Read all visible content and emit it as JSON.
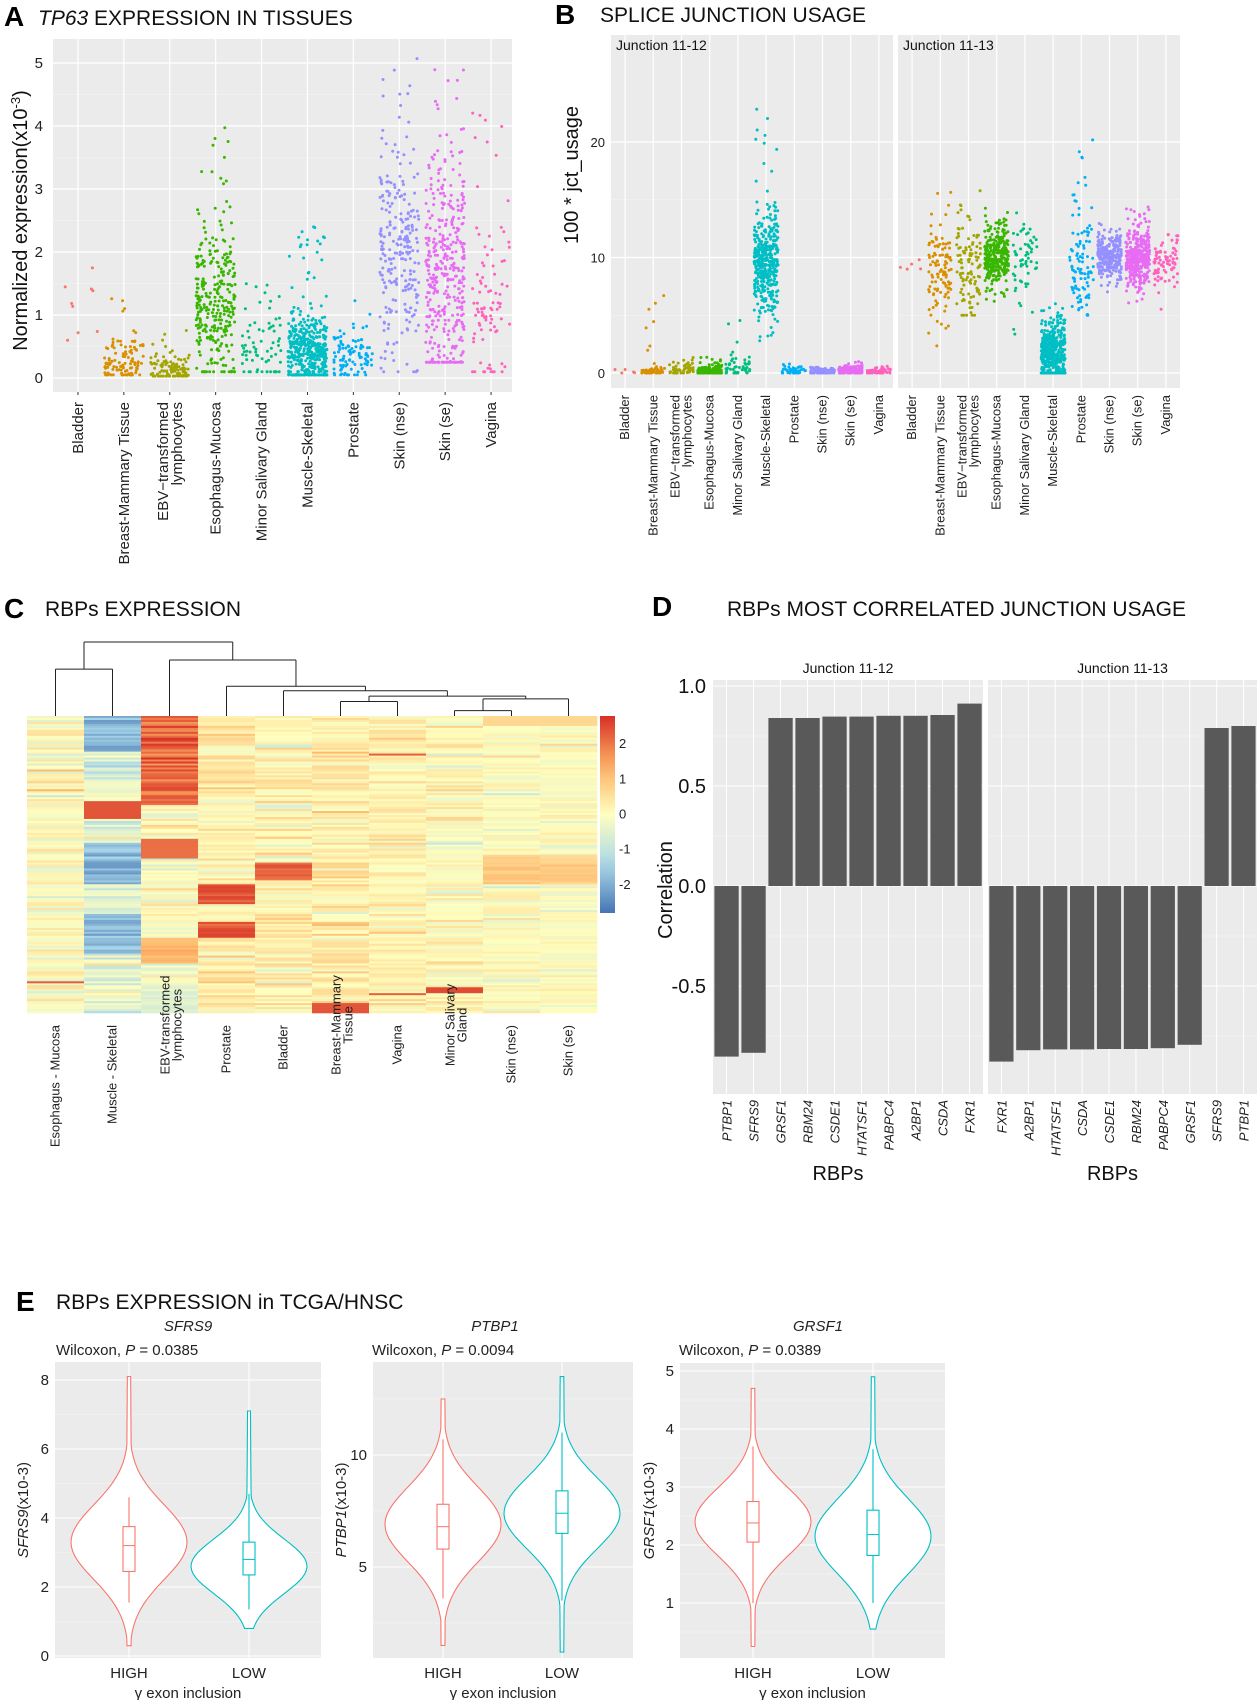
{
  "panels": {
    "A": {
      "letter": "A",
      "title_italic": "TP63",
      "title_rest": " EXPRESSION IN TISSUES"
    },
    "B": {
      "letter": "B",
      "title": "SPLICE JUNCTION USAGE"
    },
    "C": {
      "letter": "C",
      "title": "RBPs EXPRESSION"
    },
    "D": {
      "letter": "D",
      "title": "RBPs MOST CORRELATED JUNCTION USAGE"
    },
    "E": {
      "letter": "E",
      "title": "RBPs EXPRESSION in TCGA/HNSC"
    }
  },
  "chart_data": [
    {
      "id": "A",
      "type": "scatter",
      "title": "TP63 EXPRESSION IN TISSUES",
      "xlabel": "",
      "ylabel": "Normalized expression(x10^-3)",
      "ylabel_parts": {
        "main": "Normalized expression(x10",
        "sup": "-3",
        "close": ")"
      },
      "ylim": [
        -0.2,
        5.3
      ],
      "yticks": [
        0,
        1,
        2,
        3,
        4,
        5
      ],
      "grid": true,
      "categories": [
        "Bladder",
        "Breast-Mammary Tissue",
        "EBV−transformed lymphocytes",
        "Esophagus-Mucosa",
        "Minor Salivary Gland",
        "Muscle-Skeletal",
        "Prostate",
        "Skin (nse)",
        "Skin (se)",
        "Vagina"
      ],
      "category_label_lines": [
        [
          "Bladder"
        ],
        [
          "Breast-Mammary Tissue"
        ],
        [
          "EBV−transformed",
          "lymphocytes"
        ],
        [
          "Esophagus-Mucosa"
        ],
        [
          "Minor Salivary Gland"
        ],
        [
          "Muscle-Skeletal"
        ],
        [
          "Prostate"
        ],
        [
          "Skin (nse)"
        ],
        [
          "Skin (se)"
        ],
        [
          "Vagina"
        ]
      ],
      "colors": [
        "#F8766D",
        "#D89000",
        "#A3A500",
        "#39B600",
        "#00BF7D",
        "#00BFC4",
        "#00B0F6",
        "#9590FF",
        "#E76BF3",
        "#FF62BC"
      ],
      "distribution_summary": [
        {
          "n": 9,
          "median": 1.2,
          "q1": 0.9,
          "q3": 1.5,
          "min": 0.6,
          "max": 1.85
        },
        {
          "n": 110,
          "median": 0.25,
          "q1": 0.15,
          "q3": 0.45,
          "min": 0.05,
          "max": 1.55
        },
        {
          "n": 110,
          "median": 0.14,
          "q1": 0.08,
          "q3": 0.22,
          "min": 0.03,
          "max": 0.78
        },
        {
          "n": 300,
          "median": 1.2,
          "q1": 0.8,
          "q3": 1.65,
          "min": 0.1,
          "max": 4.1
        },
        {
          "n": 70,
          "median": 0.4,
          "q1": 0.22,
          "q3": 0.8,
          "min": 0.1,
          "max": 2.4
        },
        {
          "n": 420,
          "median": 0.4,
          "q1": 0.22,
          "q3": 0.65,
          "min": 0.05,
          "max": 2.55
        },
        {
          "n": 100,
          "median": 0.3,
          "q1": 0.18,
          "q3": 0.45,
          "min": 0.05,
          "max": 1.65
        },
        {
          "n": 250,
          "median": 2.1,
          "q1": 1.5,
          "q3": 2.7,
          "min": 0.1,
          "max": 5.1
        },
        {
          "n": 380,
          "median": 1.7,
          "q1": 1.1,
          "q3": 2.4,
          "min": 0.25,
          "max": 5.1
        },
        {
          "n": 90,
          "median": 1.3,
          "q1": 0.8,
          "q3": 2.0,
          "min": 0.1,
          "max": 4.35
        }
      ]
    },
    {
      "id": "B",
      "type": "scatter",
      "title": "SPLICE JUNCTION USAGE",
      "ylabel": "100 * jct_usage",
      "ylim": [
        -1.5,
        26.5
      ],
      "yticks": [
        0,
        10,
        20
      ],
      "grid": true,
      "categories": [
        "Bladder",
        "Breast-Mammary Tissue",
        "EBV−transformed lymphocytes",
        "Esophagus-Mucosa",
        "Minor Salivary Gland",
        "Muscle-Skeletal",
        "Prostate",
        "Skin (nse)",
        "Skin (se)",
        "Vagina"
      ],
      "category_label_lines": [
        [
          "Bladder"
        ],
        [
          "Breast-Mammary Tissue"
        ],
        [
          "EBV−transformed",
          "lymphocytes"
        ],
        [
          "Esophagus-Mucosa"
        ],
        [
          "Minor Salivary Gland"
        ],
        [
          "Muscle-Skeletal"
        ],
        [
          "Prostate"
        ],
        [
          "Skin (nse)"
        ],
        [
          "Skin (se)"
        ],
        [
          "Vagina"
        ]
      ],
      "colors": [
        "#F8766D",
        "#D89000",
        "#A3A500",
        "#39B600",
        "#00BF7D",
        "#00BFC4",
        "#00B0F6",
        "#9590FF",
        "#E76BF3",
        "#FF62BC"
      ],
      "facets": [
        {
          "label": "Junction 11-12",
          "distribution_summary": [
            {
              "n": 5,
              "median": 0.1,
              "q1": 0.0,
              "q3": 0.2,
              "min": 0,
              "max": 0.3
            },
            {
              "n": 60,
              "median": 0.2,
              "q1": 0.05,
              "q3": 0.4,
              "min": 0,
              "max": 6.8
            },
            {
              "n": 60,
              "median": 0.3,
              "q1": 0.1,
              "q3": 0.6,
              "min": 0,
              "max": 1.6
            },
            {
              "n": 150,
              "median": 0.2,
              "q1": 0.1,
              "q3": 0.4,
              "min": 0,
              "max": 1.5
            },
            {
              "n": 50,
              "median": 0.3,
              "q1": 0.1,
              "q3": 0.8,
              "min": 0,
              "max": 8.7
            },
            {
              "n": 400,
              "median": 9.5,
              "q1": 8.0,
              "q3": 11.0,
              "min": 2.8,
              "max": 24.0
            },
            {
              "n": 40,
              "median": 0.2,
              "q1": 0.05,
              "q3": 0.4,
              "min": 0,
              "max": 0.8
            },
            {
              "n": 100,
              "median": 0.15,
              "q1": 0.05,
              "q3": 0.3,
              "min": 0,
              "max": 0.5
            },
            {
              "n": 120,
              "median": 0.2,
              "q1": 0.05,
              "q3": 0.4,
              "min": 0,
              "max": 1.0
            },
            {
              "n": 50,
              "median": 0.15,
              "q1": 0.05,
              "q3": 0.3,
              "min": 0,
              "max": 0.8
            }
          ]
        },
        {
          "label": "Junction 11-13",
          "distribution_summary": [
            {
              "n": 5,
              "median": 9.3,
              "q1": 9.1,
              "q3": 9.5,
              "min": 9.0,
              "max": 10.8
            },
            {
              "n": 110,
              "median": 9.0,
              "q1": 7.5,
              "q3": 10.8,
              "min": 1.4,
              "max": 16.5
            },
            {
              "n": 110,
              "median": 9.5,
              "q1": 8.0,
              "q3": 11.0,
              "min": 5.0,
              "max": 18.0
            },
            {
              "n": 300,
              "median": 10.0,
              "q1": 9.2,
              "q3": 10.8,
              "min": 6.0,
              "max": 14.8
            },
            {
              "n": 60,
              "median": 9.5,
              "q1": 8.0,
              "q3": 11.0,
              "min": 1.8,
              "max": 15.5
            },
            {
              "n": 420,
              "median": 1.8,
              "q1": 0.8,
              "q3": 2.8,
              "min": 0,
              "max": 6.0
            },
            {
              "n": 100,
              "median": 9.3,
              "q1": 7.5,
              "q3": 11.0,
              "min": 3.2,
              "max": 20.2
            },
            {
              "n": 250,
              "median": 10.0,
              "q1": 9.3,
              "q3": 10.7,
              "min": 7.0,
              "max": 14.0
            },
            {
              "n": 380,
              "median": 10.0,
              "q1": 9.2,
              "q3": 10.8,
              "min": 6.0,
              "max": 14.5
            },
            {
              "n": 80,
              "median": 9.7,
              "q1": 9.0,
              "q3": 10.4,
              "min": 5.5,
              "max": 13.8
            }
          ]
        }
      ]
    },
    {
      "id": "C",
      "type": "heatmap",
      "title": "RBPs EXPRESSION",
      "columns": [
        "Esophagus - Mucosa",
        "Muscle - Skeletal",
        "EBV-transformed lymphocytes",
        "Prostate",
        "Bladder",
        "Breast-Mammary Tissue",
        "Vagina",
        "Minor Salivary Gland",
        "Skin (nse)",
        "Skin (se)"
      ],
      "column_label_lines": [
        [
          "Esophagus - Mucosa"
        ],
        [
          "Muscle - Skeletal"
        ],
        [
          "EBV-transformed",
          "lymphocytes"
        ],
        [
          "Prostate"
        ],
        [
          "Bladder"
        ],
        [
          "Breast-Mammary",
          "Tissue"
        ],
        [
          "Vagina"
        ],
        [
          "Minor Salivary",
          "Gland"
        ],
        [
          "Skin (nse)"
        ],
        [
          "Skin (se)"
        ]
      ],
      "colorbar": {
        "ticks": [
          2,
          1,
          0,
          -1,
          -2
        ],
        "range": [
          -2.8,
          2.8
        ],
        "low_color": "#4575B4",
        "mid_color": "#FFFFBF",
        "high_color": "#D73027"
      },
      "n_rows": 150,
      "dendrogram": {
        "merges": [
          {
            "a": [
              7
            ],
            "b": [
              8
            ],
            "height": 0.06
          },
          {
            "a": [
              5
            ],
            "b": [
              6
            ],
            "height": 0.16
          },
          {
            "a": [
              9
            ],
            "b": [
              7,
              8
            ],
            "height": 0.19
          },
          {
            "a": [
              5,
              6
            ],
            "b": [
              9,
              7,
              8
            ],
            "height": 0.22
          },
          {
            "a": [
              4
            ],
            "b": [
              5,
              6,
              9,
              7,
              8
            ],
            "height": 0.28
          },
          {
            "a": [
              3
            ],
            "b": [
              4,
              5,
              6,
              9,
              7,
              8
            ],
            "height": 0.33
          },
          {
            "a": [
              0
            ],
            "b": [
              1
            ],
            "height": 0.52
          },
          {
            "a": [
              2
            ],
            "b": [
              3,
              4,
              5,
              6,
              9,
              7,
              8
            ],
            "height": 0.62
          },
          {
            "a": [
              0,
              1
            ],
            "b": [
              2,
              3,
              4,
              5,
              6,
              9,
              7,
              8
            ],
            "height": 0.82
          }
        ],
        "note": "leaf indices refer to columns order"
      },
      "column_blocks": [
        {
          "col": 1,
          "pattern": "blue rows 0-18, 64-85, 100-120 strongly negative; red block rows 43-52"
        },
        {
          "col": 2,
          "pattern": "red rows 0-45; red block rows 62-72"
        },
        {
          "col": 3,
          "pattern": "red block rows 85-95, 104-112"
        },
        {
          "col": 4,
          "pattern": "red block rows 74-83"
        }
      ]
    },
    {
      "id": "D",
      "type": "bar",
      "title": "RBPs MOST CORRELATED JUNCTION USAGE",
      "xlabel": "RBPs",
      "ylabel": "Correlation",
      "ylim": [
        -0.95,
        1.0
      ],
      "yticks": [
        1.0,
        0.5,
        0.0,
        -0.5
      ],
      "ytick_labels": [
        "1.0",
        "0.5",
        "0.0",
        "-0.5"
      ],
      "grid": true,
      "bar_color": "#595959",
      "facets": [
        {
          "label": "Junction 11-12",
          "categories": [
            "PTBP1",
            "SFRS9",
            "GRSF1",
            "RBM24",
            "CSDE1",
            "HTATSF1",
            "PABPC4",
            "A2BP1",
            "CSDA",
            "FXR1"
          ],
          "values": [
            -0.853,
            -0.834,
            0.84,
            0.84,
            0.847,
            0.847,
            0.851,
            0.851,
            0.855,
            0.912
          ]
        },
        {
          "label": "Junction 11-13",
          "categories": [
            "FXR1",
            "A2BP1",
            "HTATSF1",
            "CSDA",
            "CSDE1",
            "RBM24",
            "PABPC4",
            "GRSF1",
            "SFRS9",
            "PTBP1"
          ],
          "values": [
            -0.878,
            -0.821,
            -0.817,
            -0.817,
            -0.815,
            -0.815,
            -0.811,
            -0.794,
            0.79,
            0.8
          ]
        }
      ]
    },
    {
      "id": "E",
      "type": "violin",
      "title": "RBPs EXPRESSION in TCGA/HNSC",
      "subplots": [
        {
          "gene": "SFRS9",
          "stat_label_prefix": "Wilcoxon, ",
          "stat_p_symbol": "P",
          "stat_p_value": " = 0.0385",
          "ylabel_gene": "SFRS9",
          "ylabel_suffix": "(x10-3)",
          "ylim": [
            0,
            8.3
          ],
          "yticks": [
            0,
            2,
            4,
            6,
            8
          ],
          "xlabel": "γ exon inclusion",
          "categories": [
            "HIGH",
            "LOW"
          ],
          "groups": [
            {
              "name": "HIGH",
              "color": "#F8766D",
              "min": 0.3,
              "max": 8.1,
              "whisker_low": 1.55,
              "q1": 2.45,
              "median": 3.2,
              "q3": 3.75,
              "whisker_high": 4.6,
              "mode": 3.3
            },
            {
              "name": "LOW",
              "color": "#00BFC4",
              "min": 0.8,
              "max": 7.1,
              "whisker_low": 1.35,
              "q1": 2.35,
              "median": 2.8,
              "q3": 3.3,
              "whisker_high": 4.7,
              "mode": 2.6
            }
          ]
        },
        {
          "gene": "PTBP1",
          "stat_label_prefix": "Wilcoxon, ",
          "stat_p_symbol": "P",
          "stat_p_value": " = 0.0094",
          "ylabel_gene": "PTBP1",
          "ylabel_suffix": "(x10-3)",
          "ylim": [
            0.9,
            14.0
          ],
          "yticks": [
            5,
            10
          ],
          "xlabel": "γ exon inclusion",
          "categories": [
            "HIGH",
            "LOW"
          ],
          "groups": [
            {
              "name": "HIGH",
              "color": "#F8766D",
              "min": 1.5,
              "max": 12.5,
              "whisker_low": 3.6,
              "q1": 5.8,
              "median": 6.8,
              "q3": 7.8,
              "whisker_high": 10.7,
              "mode": 6.9
            },
            {
              "name": "LOW",
              "color": "#00BFC4",
              "min": 1.2,
              "max": 13.5,
              "whisker_low": 3.5,
              "q1": 6.5,
              "median": 7.4,
              "q3": 8.4,
              "whisker_high": 11.0,
              "mode": 7.4
            }
          ]
        },
        {
          "gene": "GRSF1",
          "stat_label_prefix": "Wilcoxon, ",
          "stat_p_symbol": "P",
          "stat_p_value": " = 0.0389",
          "ylabel_gene": "GRSF1",
          "ylabel_suffix": "(x10-3)",
          "ylim": [
            0.05,
            5.05
          ],
          "yticks": [
            1,
            2,
            3,
            4,
            5
          ],
          "xlabel": "γ exon inclusion",
          "categories": [
            "HIGH",
            "LOW"
          ],
          "groups": [
            {
              "name": "HIGH",
              "color": "#F8766D",
              "min": 0.25,
              "max": 4.7,
              "whisker_low": 1.0,
              "q1": 2.05,
              "median": 2.38,
              "q3": 2.75,
              "whisker_high": 3.7,
              "mode": 2.4
            },
            {
              "name": "LOW",
              "color": "#00BFC4",
              "min": 0.55,
              "max": 4.9,
              "whisker_low": 1.0,
              "q1": 1.82,
              "median": 2.18,
              "q3": 2.6,
              "whisker_high": 3.65,
              "mode": 2.15
            }
          ]
        }
      ]
    }
  ]
}
